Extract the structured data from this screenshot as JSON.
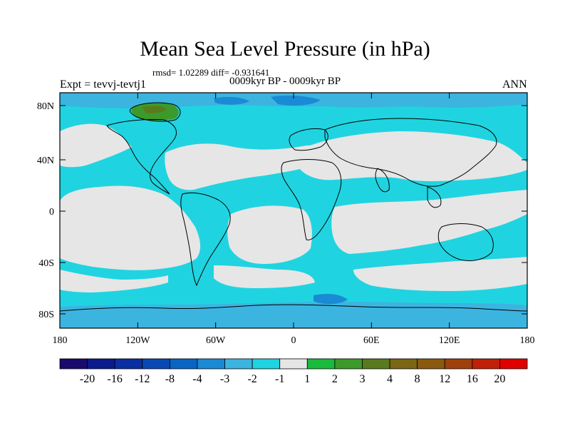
{
  "title": "Mean Sea Level Pressure (in hPa)",
  "stats": "rmsd= 1.02289 diff= -0.931641",
  "left_label": "Expt = tevvj-tevtj1",
  "center_label": "0009kyr BP - 0009kyr BP",
  "right_label": "ANN",
  "lat_ticks": [
    "80N",
    "40N",
    "0",
    "40S",
    "80S"
  ],
  "lon_ticks": [
    "180",
    "120W",
    "60W",
    "0",
    "60E",
    "120E",
    "180"
  ],
  "colorbar": {
    "labels": [
      "-20",
      "-16",
      "-12",
      "-8",
      "-4",
      "-3",
      "-2",
      "-1",
      "1",
      "2",
      "3",
      "4",
      "8",
      "12",
      "16",
      "20"
    ],
    "colors": [
      "#1a0a6b",
      "#0b1a8c",
      "#0a2fa0",
      "#0a48b4",
      "#0a64c4",
      "#1a8ad4",
      "#3cb4e0",
      "#1fd4e0",
      "#e6e6e6",
      "#1aba3c",
      "#3c9a2a",
      "#5a7a1e",
      "#7a6614",
      "#8a5a10",
      "#a0400c",
      "#c02008",
      "#e00000"
    ]
  },
  "colors": {
    "neutral": "#e6e6e6",
    "band_light": "#1fd4e0",
    "band_mid": "#3cb4e0",
    "band_strong": "#1a8ad4",
    "positive": "#3c9a2a"
  }
}
